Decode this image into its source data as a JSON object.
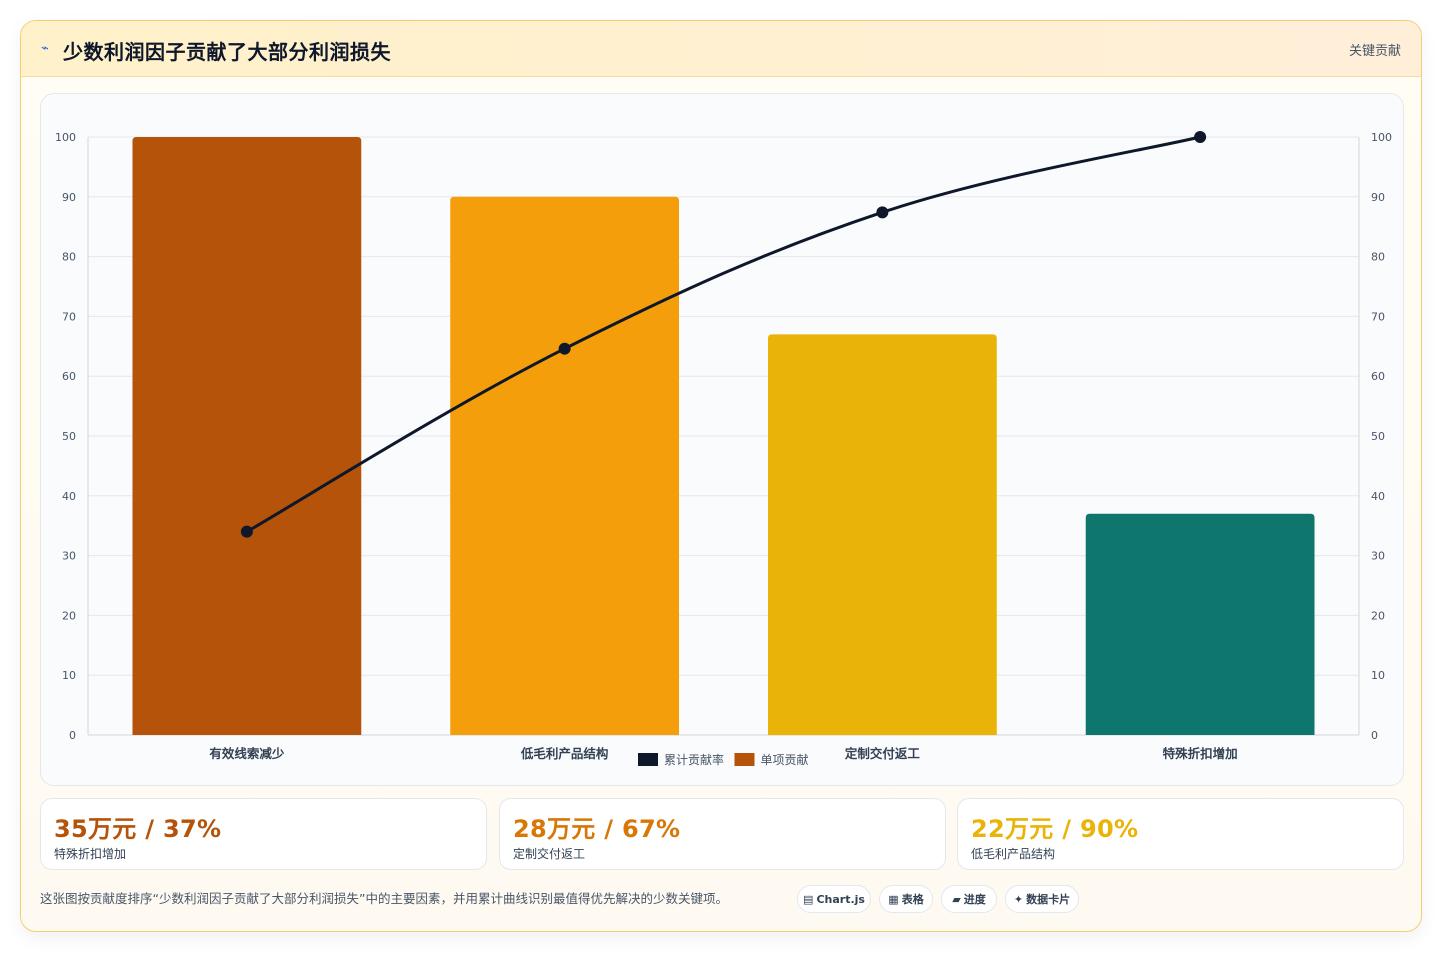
{
  "header": {
    "icon": "⌁",
    "title": "少数利润因子贡献了大部分利润损失",
    "tag": "关键贡献"
  },
  "chart_data": {
    "type": "bar",
    "categories": [
      "有效线索减少",
      "低毛利产品结构",
      "定制交付返工",
      "特殊折扣增加"
    ],
    "series": [
      {
        "name": "单项贡献",
        "type": "bar",
        "values": [
          100,
          90,
          67,
          37
        ],
        "colors": [
          "#b45309",
          "#f59e0b",
          "#eab308",
          "#0f766e"
        ]
      },
      {
        "name": "累计贡献率",
        "type": "line",
        "values": [
          34,
          64.6,
          87.4,
          100
        ],
        "color": "#0f172a"
      }
    ],
    "ylim": [
      0,
      100
    ],
    "y_ticks": [
      0,
      10,
      20,
      30,
      40,
      50,
      60,
      70,
      80,
      90,
      100
    ],
    "y2lim": [
      0,
      100
    ],
    "y2_ticks": [
      0,
      10,
      20,
      30,
      40,
      50,
      60,
      70,
      80,
      90,
      100
    ],
    "grid": true,
    "legend": "bottom",
    "legend_items": [
      {
        "label": "累计贡献率",
        "color": "#0f172a"
      },
      {
        "label": "单项贡献",
        "color": "#b45309"
      }
    ]
  },
  "stats": [
    {
      "value": "35万元 / 37%",
      "label": "特殊折扣增加",
      "color": "#b45309"
    },
    {
      "value": "28万元 / 67%",
      "label": "定制交付返工",
      "color": "#d97706"
    },
    {
      "value": "22万元 / 90%",
      "label": "低毛利产品结构",
      "color": "#eab308"
    }
  ],
  "footer": {
    "description": "这张图按贡献度排序“少数利润因子贡献了大部分利润损失”中的主要因素，并用累计曲线识别最值得优先解决的少数关键项。"
  },
  "chips": [
    {
      "icon": "▤",
      "label": "Chart.js"
    },
    {
      "icon": "▦",
      "label": "表格"
    },
    {
      "icon": "▰",
      "label": "进度"
    },
    {
      "icon": "✦",
      "label": "数据卡片"
    }
  ]
}
